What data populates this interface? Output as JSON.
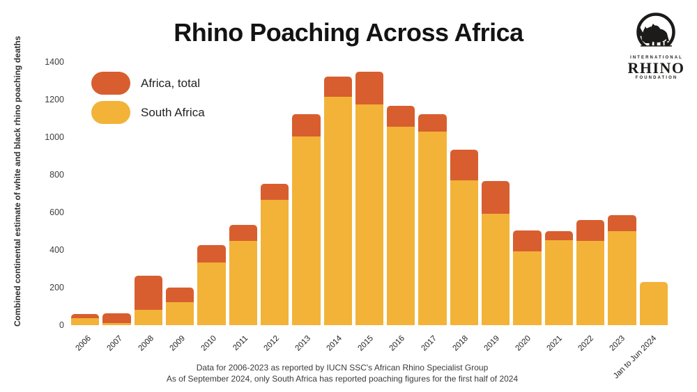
{
  "title": "Rhino Poaching Across Africa",
  "logo": {
    "line1": "INTERNATIONAL",
    "line2": "RHINO",
    "line3": "FOUNDATION"
  },
  "legend": [
    {
      "label": "Africa, total",
      "color": "#d85e2f"
    },
    {
      "label": "South Africa",
      "color": "#f2b338"
    }
  ],
  "y_axis": {
    "label": "Combined continental estimate of white and black rhino poaching deaths",
    "ticks": [
      0,
      200,
      400,
      600,
      800,
      1000,
      1200,
      1400
    ]
  },
  "footer": {
    "line1": "Data for 2006-2023 as reported by IUCN SSC's African Rhino Specialist Group",
    "line2": "As of September 2024, only South Africa has reported poaching figures for the first half of 2024"
  },
  "chart_data": {
    "type": "bar",
    "stacked": true,
    "title": "Rhino Poaching Across Africa",
    "xlabel": "",
    "ylabel": "Combined continental estimate of white and black rhino poaching deaths",
    "ylim": [
      0,
      1400
    ],
    "grid": false,
    "legend_position": "top-left",
    "categories": [
      "2006",
      "2007",
      "2008",
      "2009",
      "2010",
      "2011",
      "2012",
      "2013",
      "2014",
      "2015",
      "2016",
      "2017",
      "2018",
      "2019",
      "2020",
      "2021",
      "2022",
      "2023",
      "Jan to Jun 2024"
    ],
    "series": [
      {
        "name": "Africa, total",
        "color": "#d85e2f",
        "values": [
          60,
          62,
          262,
          201,
          426,
          532,
          751,
          1123,
          1324,
          1349,
          1167,
          1124,
          932,
          766,
          503,
          501,
          561,
          586,
          null
        ]
      },
      {
        "name": "South Africa",
        "color": "#f2b338",
        "values": [
          36,
          13,
          83,
          122,
          333,
          448,
          668,
          1004,
          1215,
          1175,
          1054,
          1028,
          769,
          594,
          394,
          451,
          448,
          499,
          229
        ]
      }
    ]
  }
}
